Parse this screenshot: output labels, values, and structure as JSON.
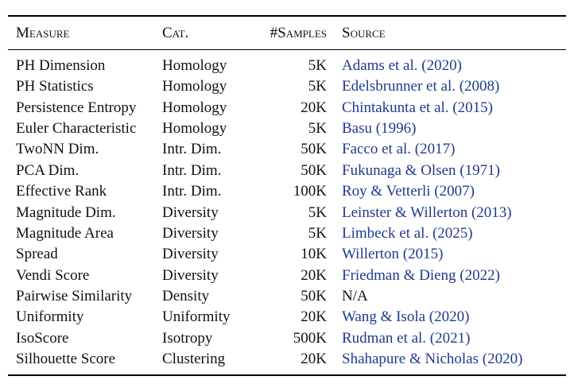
{
  "table": {
    "header": [
      "Measure",
      "Cat.",
      "#Samples",
      "Source"
    ],
    "rows": [
      [
        "PH Dimension",
        "Homology",
        "5K",
        "Adams et al. (2020)"
      ],
      [
        "PH Statistics",
        "Homology",
        "5K",
        "Edelsbrunner et al. (2008)"
      ],
      [
        "Persistence Entropy",
        "Homology",
        "20K",
        "Chintakunta et al. (2015)"
      ],
      [
        "Euler Characteristic",
        "Homology",
        "5K",
        "Basu (1996)"
      ],
      [
        "TwoNN Dim.",
        "Intr. Dim.",
        "50K",
        "Facco et al. (2017)"
      ],
      [
        "PCA Dim.",
        "Intr. Dim.",
        "50K",
        "Fukunaga & Olsen (1971)"
      ],
      [
        "Effective Rank",
        "Intr. Dim.",
        "100K",
        "Roy & Vetterli (2007)"
      ],
      [
        "Magnitude Dim.",
        "Diversity",
        "5K",
        "Leinster & Willerton (2013)"
      ],
      [
        "Magnitude Area",
        "Diversity",
        "5K",
        "Limbeck et al. (2025)"
      ],
      [
        "Spread",
        "Diversity",
        "10K",
        "Willerton (2015)"
      ],
      [
        "Vendi Score",
        "Diversity",
        "20K",
        "Friedman & Dieng (2022)"
      ],
      [
        "Pairwise Similarity",
        "Density",
        "50K",
        "N/A"
      ],
      [
        "Uniformity",
        "Uniformity",
        "20K",
        "Wang & Isola (2020)"
      ],
      [
        "IsoScore",
        "Isotropy",
        "500K",
        "Rudman et al. (2021)"
      ],
      [
        "Silhouette Score",
        "Clustering",
        "20K",
        "Shahapure & Nicholas (2020)"
      ]
    ]
  }
}
